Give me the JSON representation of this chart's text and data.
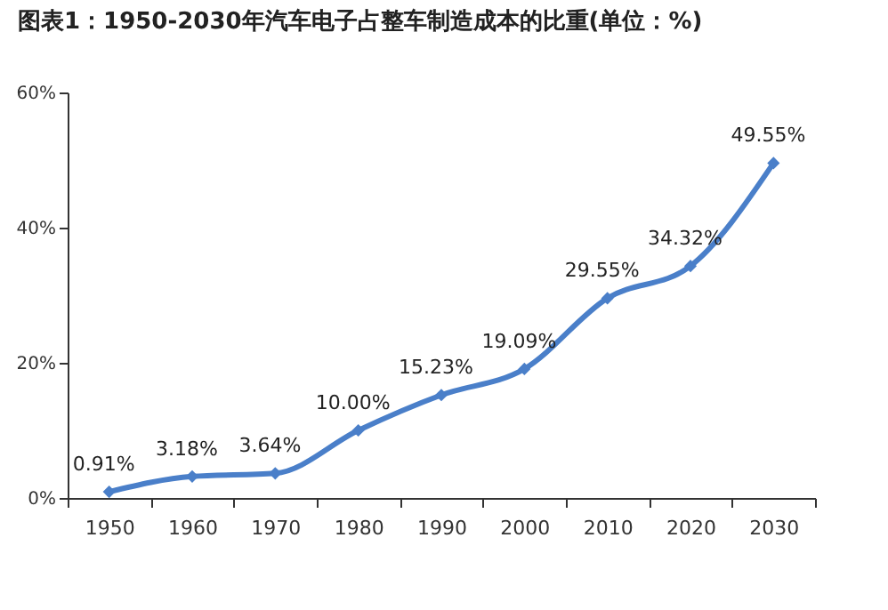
{
  "chart_data": {
    "type": "line",
    "title": "图表1：1950-2030年汽车电子占整车制造成本的比重(单位：%)",
    "categories": [
      "1950",
      "1960",
      "1970",
      "1980",
      "1990",
      "2000",
      "2010",
      "2020",
      "2030"
    ],
    "series": [
      {
        "color": "#4a7fc9",
        "values": [
          0.91,
          3.18,
          3.64,
          10.0,
          15.23,
          19.09,
          29.55,
          34.32,
          49.55
        ],
        "value_labels": [
          "0.91%",
          "3.18%",
          "3.64%",
          "10.00%",
          "15.23%",
          "19.09%",
          "29.55%",
          "34.32%",
          "49.55%"
        ]
      }
    ],
    "ylim": [
      0,
      60
    ],
    "yticks": [
      {
        "value": 0,
        "label": "0%"
      },
      {
        "value": 20,
        "label": "20%"
      },
      {
        "value": 40,
        "label": "40%"
      },
      {
        "value": 60,
        "label": "60%"
      }
    ],
    "grid": false,
    "marker": "diamond",
    "line_style": "solid"
  }
}
